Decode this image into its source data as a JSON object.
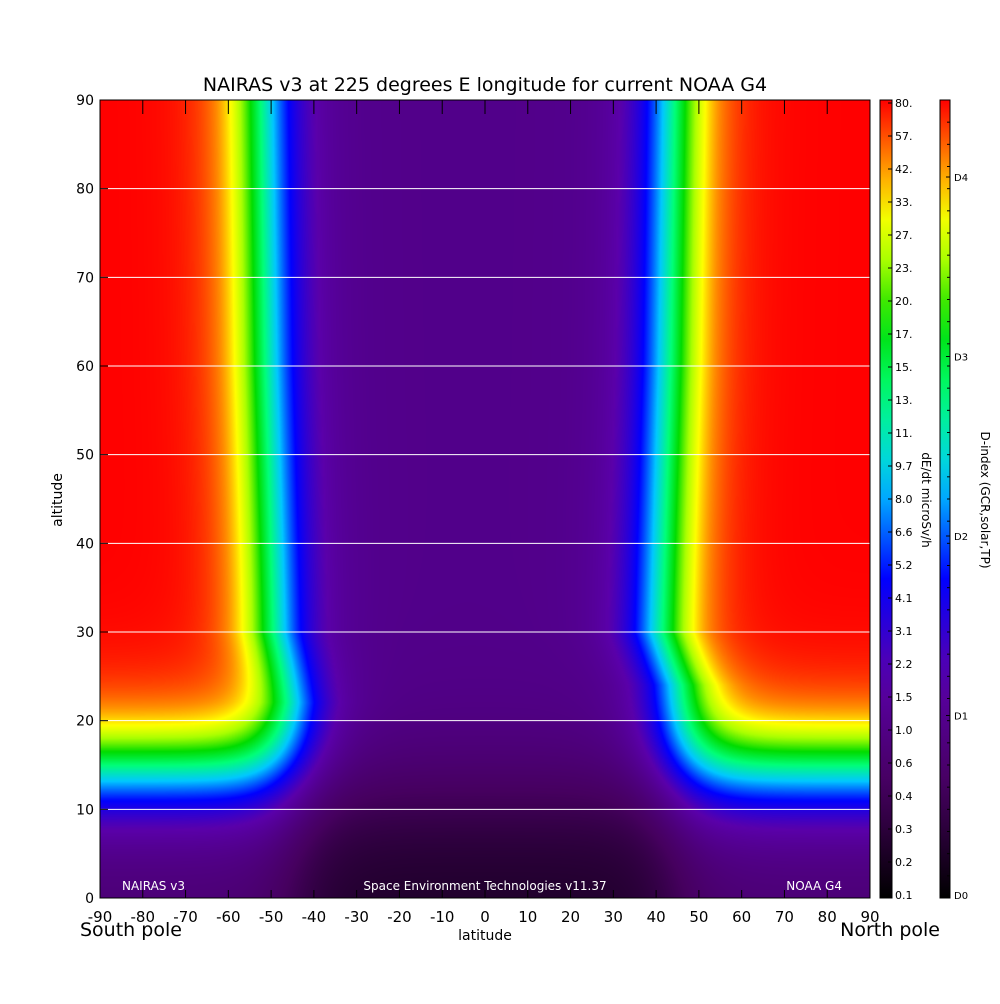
{
  "chart_data": {
    "type": "heatmap",
    "title": "NAIRAS v3 at 225 degrees E longitude for current NOAA G4",
    "xlabel": "latitude",
    "ylabel": "altitude",
    "xlim": [
      -90,
      90
    ],
    "ylim": [
      0,
      90
    ],
    "x_ticks": [
      -90,
      -80,
      -70,
      -60,
      -50,
      -40,
      -30,
      -20,
      -10,
      0,
      10,
      20,
      30,
      40,
      50,
      60,
      70,
      80,
      90
    ],
    "y_ticks": [
      0,
      10,
      20,
      30,
      40,
      50,
      60,
      70,
      80,
      90
    ],
    "grid": "horizontal",
    "corner_labels": {
      "left": "South pole",
      "right": "North pole"
    },
    "footer": {
      "left": "NAIRAS v3",
      "center": "Space Environment Technologies v11.37",
      "right": "NOAA G4"
    },
    "colorbar": {
      "label": "dE/dt microSv/h",
      "scale": "log",
      "ticks": [
        "0.1",
        "0.2",
        "0.3",
        "0.4",
        "0.6",
        "1.0",
        "1.5",
        "2.2",
        "3.1",
        "4.1",
        "5.2",
        "6.6",
        "8.0",
        "9.7",
        "11.",
        "13.",
        "15.",
        "17.",
        "20.",
        "23.",
        "27.",
        "33.",
        "42.",
        "57.",
        "80."
      ]
    },
    "colorbar2": {
      "label": "D-index (GCR,solar,TP)",
      "ticks": [
        "D0",
        "D1",
        "D2",
        "D3",
        "D4"
      ]
    },
    "model": {
      "cutoff_latitude_south": {
        "lat": [
          -57,
          -56,
          -54,
          -50
        ],
        "alt": [
          90,
          60,
          30,
          22
        ]
      },
      "cutoff_latitude_north": {
        "lat": [
          49,
          48,
          46,
          50
        ],
        "alt": [
          90,
          60,
          30,
          24
        ]
      },
      "polar_plateau_altitude": 21,
      "polar_dose_max_microSv_h": 80,
      "equatorial_dose_min_microSv_h": 0.1
    }
  }
}
